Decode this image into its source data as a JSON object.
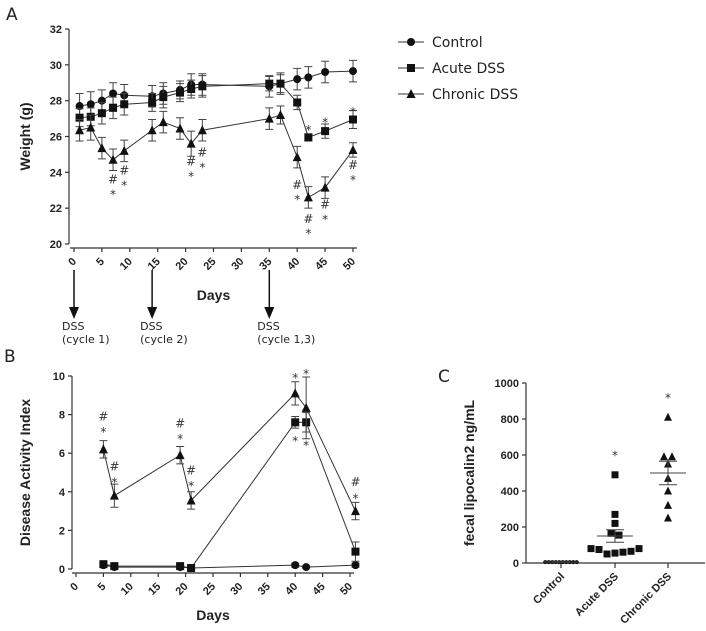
{
  "chart_data": [
    {
      "panel": "A",
      "type": "line",
      "xlabel": "Days",
      "ylabel": "Weight (g)",
      "xlim": [
        0,
        50
      ],
      "ylim": [
        20,
        32
      ],
      "xticks": [
        "0",
        "5",
        "10",
        "15",
        "20",
        "25",
        "30",
        "35",
        "40",
        "45",
        "50"
      ],
      "yticks": [
        "20",
        "22",
        "24",
        "26",
        "28",
        "30",
        "32"
      ],
      "legend": {
        "placement": "right",
        "entries": [
          "Control",
          "Acute DSS",
          "Chronic DSS"
        ]
      },
      "x": [
        1,
        3,
        5,
        7,
        9,
        14,
        16,
        19,
        21,
        23,
        35,
        37,
        40,
        42,
        45,
        50
      ],
      "series": [
        {
          "name": "Control",
          "marker": "circle",
          "values": [
            27.7,
            27.8,
            28.0,
            28.4,
            28.3,
            28.25,
            28.4,
            28.6,
            28.9,
            28.9,
            28.8,
            28.95,
            29.2,
            29.3,
            29.6,
            29.65
          ],
          "errors": [
            0.7,
            0.7,
            0.6,
            0.6,
            0.6,
            0.6,
            0.6,
            0.5,
            0.6,
            0.6,
            0.6,
            0.6,
            0.6,
            0.6,
            0.6,
            0.6
          ]
        },
        {
          "name": "Acute DSS",
          "marker": "square",
          "values": [
            27.05,
            27.1,
            27.3,
            27.6,
            27.8,
            27.9,
            28.2,
            28.45,
            28.65,
            28.8,
            28.95,
            28.95,
            27.9,
            25.95,
            26.3,
            26.95
          ],
          "errors": [
            0.5,
            0.5,
            0.6,
            0.6,
            0.6,
            0.5,
            0.6,
            0.5,
            0.5,
            0.6,
            0.4,
            0.5,
            0.4,
            0.2,
            0.4,
            0.5
          ]
        },
        {
          "name": "Chronic DSS",
          "marker": "triangle",
          "values": [
            26.35,
            26.5,
            25.35,
            24.7,
            25.2,
            26.35,
            26.8,
            26.45,
            25.6,
            26.35,
            27.0,
            27.2,
            24.85,
            22.6,
            23.15,
            25.25
          ],
          "errors": [
            0.6,
            0.7,
            0.6,
            0.6,
            0.6,
            0.6,
            0.6,
            0.6,
            0.7,
            0.6,
            0.6,
            0.5,
            0.6,
            0.6,
            0.6,
            0.4
          ]
        }
      ],
      "annotations": [
        {
          "x": 7,
          "y": 23.6,
          "text": "#"
        },
        {
          "x": 7,
          "y": 23.0,
          "text": "*"
        },
        {
          "x": 9,
          "y": 24.1,
          "text": "#"
        },
        {
          "x": 9,
          "y": 23.5,
          "text": "*"
        },
        {
          "x": 21,
          "y": 24.6,
          "text": "#"
        },
        {
          "x": 21,
          "y": 24.0,
          "text": "*"
        },
        {
          "x": 23,
          "y": 25.1,
          "text": "#"
        },
        {
          "x": 23,
          "y": 24.5,
          "text": "*"
        },
        {
          "x": 40,
          "y": 23.3,
          "text": "#"
        },
        {
          "x": 40,
          "y": 22.7,
          "text": "*"
        },
        {
          "x": 42,
          "y": 21.4,
          "text": "#"
        },
        {
          "x": 42,
          "y": 20.8,
          "text": "*"
        },
        {
          "x": 45,
          "y": 22.2,
          "text": "#"
        },
        {
          "x": 45,
          "y": 21.6,
          "text": "*"
        },
        {
          "x": 50,
          "y": 24.4,
          "text": "#"
        },
        {
          "x": 50,
          "y": 23.8,
          "text": "*"
        },
        {
          "x": 42,
          "y": 26.6,
          "text": "*"
        },
        {
          "x": 45,
          "y": 27.0,
          "text": "*"
        },
        {
          "x": 50,
          "y": 27.6,
          "text": "*"
        }
      ],
      "dss_events": [
        {
          "day": 0,
          "label_line1": "DSS",
          "label_line2": "(cycle 1)"
        },
        {
          "day": 14,
          "label_line1": "DSS",
          "label_line2": "(cycle 2)"
        },
        {
          "day": 35,
          "label_line1": "DSS",
          "label_line2": "(cycle 1,3)"
        }
      ]
    },
    {
      "panel": "B",
      "type": "line",
      "xlabel": "Days",
      "ylabel": "Disease Activity Index",
      "xlim": [
        0,
        51
      ],
      "ylim": [
        0,
        10
      ],
      "xticks": [
        "0",
        "5",
        "10",
        "15",
        "20",
        "25",
        "30",
        "35",
        "40",
        "45",
        "50"
      ],
      "yticks": [
        "0",
        "2",
        "4",
        "6",
        "8",
        "10"
      ],
      "x": [
        5,
        7,
        19,
        21,
        40,
        42,
        51
      ],
      "series": [
        {
          "name": "Control",
          "marker": "circle",
          "values": [
            0.2,
            0.1,
            0.1,
            0.05,
            0.2,
            0.1,
            0.2
          ],
          "errors": [
            0.1,
            0.05,
            0.05,
            0.05,
            0.1,
            0.05,
            0.1
          ]
        },
        {
          "name": "Acute DSS",
          "marker": "square",
          "values": [
            0.25,
            0.15,
            0.15,
            0.05,
            7.6,
            7.6,
            0.9
          ],
          "errors": [
            0.1,
            0.1,
            0.05,
            0.05,
            0.3,
            0.5,
            0.5
          ]
        },
        {
          "name": "Chronic DSS",
          "marker": "triangle",
          "values": [
            6.2,
            3.8,
            5.9,
            3.55,
            9.1,
            8.35,
            3.0
          ],
          "errors": [
            0.45,
            0.6,
            0.45,
            0.45,
            0.6,
            1.6,
            0.45
          ]
        }
      ],
      "annotations": [
        {
          "x": 5,
          "y": 7.9,
          "text": "#"
        },
        {
          "x": 5,
          "y": 7.3,
          "text": "*"
        },
        {
          "x": 7,
          "y": 5.3,
          "text": "#"
        },
        {
          "x": 7,
          "y": 4.7,
          "text": "*"
        },
        {
          "x": 19,
          "y": 7.55,
          "text": "#"
        },
        {
          "x": 19,
          "y": 6.95,
          "text": "*"
        },
        {
          "x": 21,
          "y": 5.1,
          "text": "#"
        },
        {
          "x": 21,
          "y": 4.5,
          "text": "*"
        },
        {
          "x": 40,
          "y": 10.1,
          "text": "*"
        },
        {
          "x": 40,
          "y": 6.85,
          "text": "*"
        },
        {
          "x": 42,
          "y": 10.3,
          "text": "*"
        },
        {
          "x": 42,
          "y": 6.6,
          "text": "*"
        },
        {
          "x": 51,
          "y": 4.5,
          "text": "#"
        },
        {
          "x": 51,
          "y": 3.85,
          "text": "*"
        }
      ]
    },
    {
      "panel": "C",
      "type": "scatter",
      "ylabel": "fecal lipocalin2 ng/mL",
      "ylim": [
        0,
        1000
      ],
      "yticks": [
        "0",
        "200",
        "400",
        "600",
        "800",
        "1000"
      ],
      "categories": [
        "Control",
        "Acute DSS",
        "Chronic DSS"
      ],
      "groups": [
        {
          "name": "Control",
          "marker": "circle",
          "points": [
            5,
            5,
            5,
            5,
            5,
            5,
            5,
            5,
            5,
            5
          ],
          "mean": 5,
          "sem": 1,
          "annotation": ""
        },
        {
          "name": "Acute DSS",
          "marker": "square",
          "points": [
            490,
            270,
            220,
            165,
            155,
            80,
            75,
            50,
            55,
            60,
            65,
            80
          ],
          "mean": 150,
          "sem": 35,
          "annotation": "*"
        },
        {
          "name": "Chronic DSS",
          "marker": "triangle",
          "points": [
            810,
            590,
            590,
            550,
            470,
            400,
            320,
            250
          ],
          "mean": 500,
          "sem": 65,
          "annotation": "*"
        }
      ]
    }
  ],
  "colors": {
    "ink": "#222222",
    "axis": "#333333"
  }
}
